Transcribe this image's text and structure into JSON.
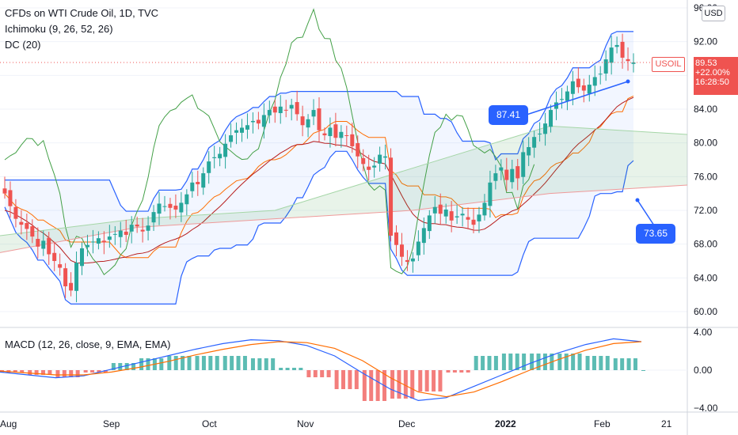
{
  "legend": {
    "symbol": "CFDs on WTI Crude Oil, 1D, TVC",
    "ichimoku": "Ichimoku (9, 26, 52, 26)",
    "donchian": "DC (20)",
    "macd": "MACD (12, 26, close, 9, EMA, EMA)"
  },
  "unit_button": "USD",
  "price_tag": {
    "symbol": "USOIL",
    "price": "89.53",
    "change": "+22.00%",
    "countdown": "16:28:50"
  },
  "callouts": {
    "upper": "87.41",
    "lower": "73.65"
  },
  "colors": {
    "up": "#26a69a",
    "down": "#ef5350",
    "donchian": "#2962ff",
    "macd_line": "#2962ff",
    "signal_line": "#ff6d00"
  },
  "chart_data": [
    {
      "type": "candlestick",
      "title": "CFDs on WTI Crude Oil, 1D, TVC",
      "y_ticks": [
        "96.00",
        "92.00",
        "88.00",
        "84.00",
        "80.00",
        "76.00",
        "72.00",
        "68.00",
        "64.00",
        "60.00"
      ],
      "x_ticks": [
        "Aug",
        "Sep",
        "Oct",
        "Nov",
        "Dec",
        "2022",
        "Feb",
        "21"
      ],
      "ylim": [
        58.5,
        96
      ],
      "last_price": 89.53,
      "closes": [
        74,
        72.5,
        71,
        70.3,
        69.8,
        68.9,
        67.7,
        68.4,
        66.8,
        66.0,
        65.2,
        63.0,
        62.5,
        65.8,
        67.5,
        67.9,
        68.3,
        68.7,
        68.2,
        68.9,
        69.2,
        69.6,
        69.1,
        70.3,
        70.1,
        69.5,
        70.2,
        71.8,
        72.8,
        72.5,
        72.3,
        72.1,
        72.9,
        73.9,
        75.3,
        75.1,
        76.4,
        77.8,
        78.3,
        78.7,
        79.9,
        80.9,
        81.5,
        81.8,
        82.1,
        82.6,
        82.3,
        83.3,
        83.9,
        83.6,
        84.3,
        83.9,
        84.5,
        83.4,
        82.1,
        82.8,
        83.9,
        81.5,
        80.9,
        81.8,
        80.6,
        81.3,
        80.9,
        79.6,
        78.4,
        77.5,
        76.8,
        77.3,
        78.6,
        78.4,
        69.0,
        67.9,
        66.5,
        65.9,
        66.3,
        68.3,
        69.9,
        71.4,
        72.4,
        71.6,
        72.1,
        70.8,
        71.3,
        71.6,
        70.9,
        70.3,
        71.5,
        72.9,
        75.3,
        76.4,
        77.1,
        75.6,
        76.9,
        75.8,
        78.9,
        79.5,
        80.7,
        81.1,
        82.3,
        83.9,
        84.8,
        85.2,
        86.1,
        87.3,
        86.6,
        86.2,
        86.9,
        87.8,
        88.2,
        89.9,
        91.3,
        91.6,
        90.1,
        89.7,
        89.53
      ],
      "ichimoku": {
        "conversion_line": "red, ~65 → 84 → 70 → 86",
        "base_line": "dark red, ~68 → 80 → 73 → 85",
        "cloud_upper": [
          69,
          71,
          72,
          77,
          82,
          81
        ],
        "cloud_lower": [
          67,
          70,
          71,
          72,
          74,
          75
        ]
      },
      "donchian_20": {
        "upper_max": 93.7,
        "lower_min": 62.1
      }
    },
    {
      "type": "line",
      "title": "MACD (12, 26, close, 9, EMA, EMA)",
      "y_ticks": [
        "4.00",
        "0.00",
        "−4.00"
      ],
      "ylim": [
        -4,
        4
      ],
      "series": [
        {
          "name": "MACD",
          "values": [
            -0.2,
            -0.5,
            -0.8,
            -0.6,
            0.1,
            0.8,
            1.5,
            2.2,
            2.8,
            3.2,
            3.1,
            2.6,
            1.5,
            -0.3,
            -2.0,
            -3.2,
            -2.9,
            -1.7,
            -0.5,
            0.7,
            1.8,
            2.7,
            3.3,
            3.0
          ]
        },
        {
          "name": "Signal",
          "values": [
            -0.1,
            -0.3,
            -0.5,
            -0.5,
            -0.2,
            0.3,
            0.9,
            1.6,
            2.2,
            2.7,
            3.0,
            2.9,
            2.3,
            1.0,
            -0.8,
            -2.3,
            -2.8,
            -2.3,
            -1.2,
            0.0,
            1.1,
            2.1,
            2.8,
            3.0
          ]
        }
      ]
    }
  ]
}
